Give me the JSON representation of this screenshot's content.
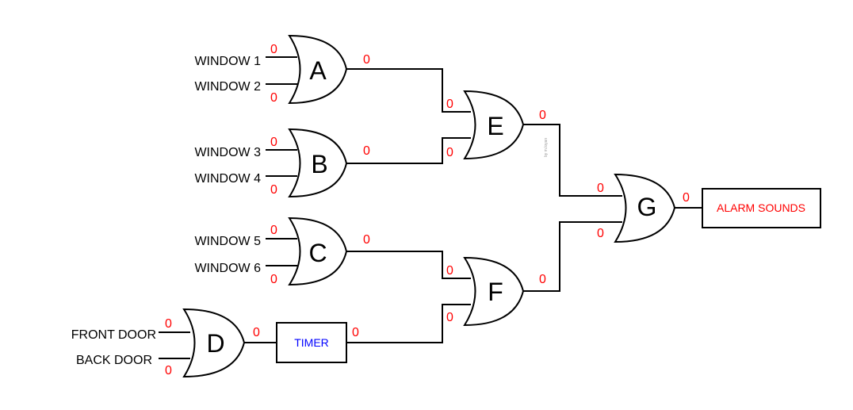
{
  "colors": {
    "value": "#ff0000",
    "timer": "#0000ff",
    "alarm": "#ff0000",
    "line": "#000000"
  },
  "inputs": {
    "window1": "WINDOW 1",
    "window2": "WINDOW 2",
    "window3": "WINDOW 3",
    "window4": "WINDOW 4",
    "window5": "WINDOW 5",
    "window6": "WINDOW 6",
    "front_door": "FRONT DOOR",
    "back_door": "BACK DOOR"
  },
  "gates": {
    "a": "A",
    "b": "B",
    "c": "C",
    "d": "D",
    "e": "E",
    "f": "F",
    "g": "G"
  },
  "boxes": {
    "timer": "TIMER",
    "alarm": "ALARM SOUNDS"
  },
  "values": {
    "window1": "0",
    "window2": "0",
    "window3": "0",
    "window4": "0",
    "window5": "0",
    "window6": "0",
    "front_door": "0",
    "back_door": "0",
    "a_out": "0",
    "b_out": "0",
    "c_out": "0",
    "d_out": "0",
    "timer_out": "0",
    "e_in1": "0",
    "e_in2": "0",
    "e_out": "0",
    "f_in1": "0",
    "f_in2": "0",
    "f_out": "0",
    "g_in1": "0",
    "g_in2": "0",
    "g_out": "0"
  },
  "credit": "by m.loyan"
}
